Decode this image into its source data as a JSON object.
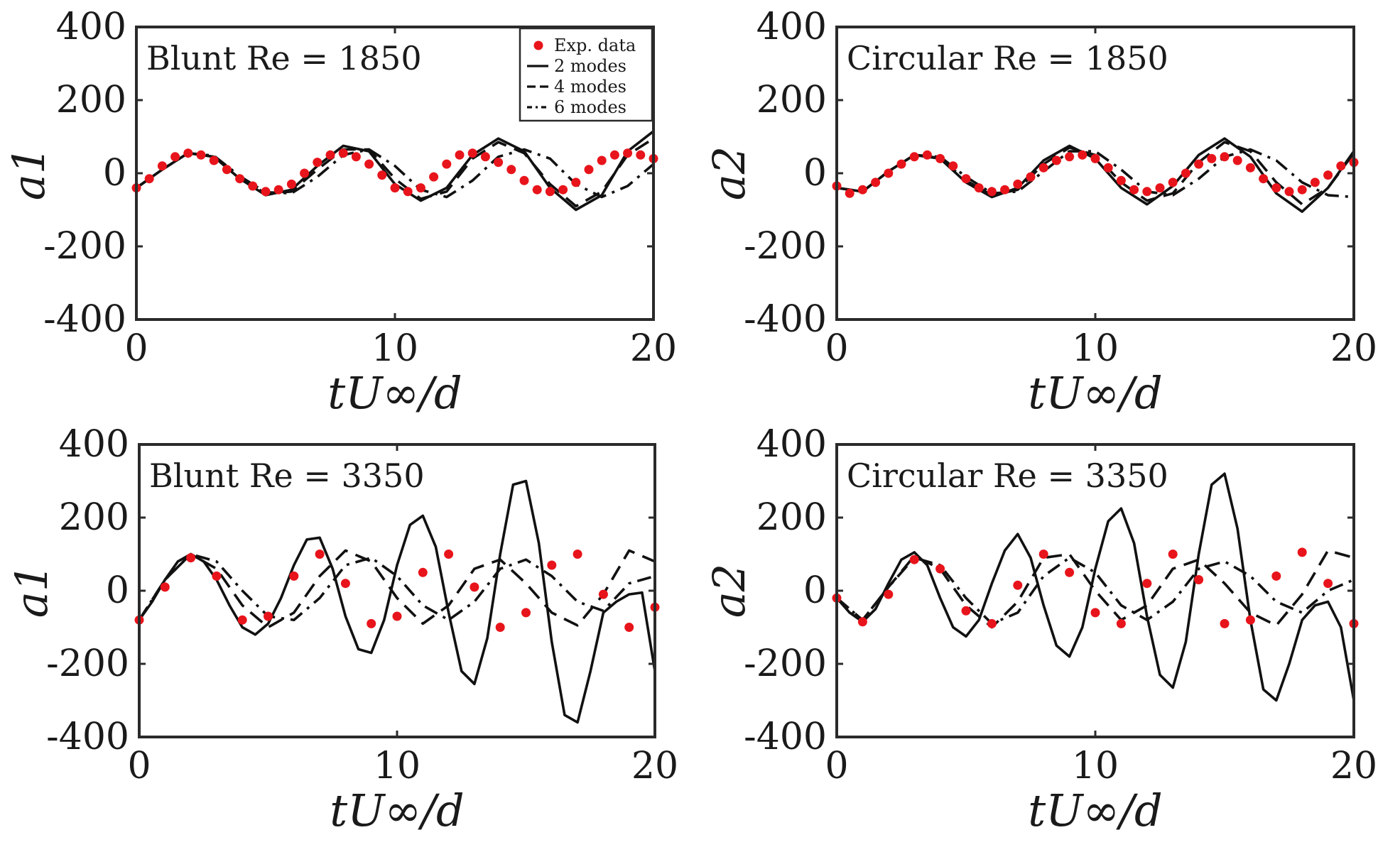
{
  "figure": {
    "legend": {
      "entries": [
        {
          "label": "Exp. data",
          "style": "marker"
        },
        {
          "label": "2 modes",
          "style": "solid"
        },
        {
          "label": "4 modes",
          "style": "dashed"
        },
        {
          "label": "6 modes",
          "style": "dashdot"
        }
      ]
    }
  },
  "chart_data": [
    {
      "type": "line",
      "title": "Blunt Re = 1850",
      "xlabel": "tU∞/d",
      "ylabel": "a1",
      "xlim": [
        0,
        20
      ],
      "ylim": [
        -400,
        400
      ],
      "xticks": [
        "0",
        "10",
        "20"
      ],
      "yticks": [
        "400",
        "200",
        "0",
        "-200",
        "-400"
      ],
      "grid": false,
      "legend": "top-right",
      "series": [
        {
          "name": "2 modes",
          "style": "solid",
          "x": [
            0,
            1,
            2,
            3,
            4,
            5,
            6,
            7,
            8,
            9,
            10,
            11,
            12,
            13,
            14,
            15,
            16,
            17,
            18,
            19,
            20
          ],
          "values": [
            -40,
            10,
            55,
            45,
            -15,
            -60,
            -45,
            20,
            75,
            60,
            -30,
            -75,
            -40,
            50,
            95,
            60,
            -40,
            -100,
            -60,
            60,
            115
          ]
        },
        {
          "name": "4 modes",
          "style": "dashed",
          "x": [
            0,
            1,
            2,
            3,
            4,
            5,
            6,
            7,
            8,
            9,
            10,
            11,
            12,
            13,
            14,
            15,
            16,
            17,
            18,
            19,
            20
          ],
          "values": [
            -40,
            10,
            55,
            45,
            -15,
            -55,
            -50,
            10,
            65,
            65,
            -15,
            -70,
            -50,
            40,
            85,
            55,
            -30,
            -90,
            -50,
            50,
            95
          ]
        },
        {
          "name": "6 modes",
          "style": "dashdot",
          "x": [
            0,
            1,
            2,
            3,
            4,
            5,
            6,
            7,
            8,
            9,
            10,
            11,
            12,
            13,
            14,
            15,
            16,
            17,
            18,
            19,
            20
          ],
          "values": [
            -40,
            10,
            55,
            48,
            -8,
            -52,
            -55,
            -10,
            50,
            65,
            20,
            -45,
            -65,
            -20,
            45,
            65,
            40,
            -30,
            -65,
            -35,
            25
          ]
        },
        {
          "name": "Exp. data",
          "style": "marker",
          "x": [
            0,
            0.5,
            1,
            1.5,
            2,
            2.5,
            3,
            3.5,
            4,
            4.5,
            5,
            5.5,
            6,
            6.5,
            7,
            7.5,
            8,
            8.5,
            9,
            9.5,
            10,
            10.5,
            11,
            11.5,
            12,
            12.5,
            13,
            13.5,
            14,
            14.5,
            15,
            15.5,
            16,
            16.5,
            17,
            17.5,
            18,
            18.5,
            19,
            19.5,
            20
          ],
          "values": [
            -40,
            -15,
            20,
            45,
            55,
            50,
            35,
            10,
            -15,
            -35,
            -50,
            -45,
            -30,
            0,
            30,
            50,
            55,
            45,
            25,
            -5,
            -40,
            -50,
            -40,
            -10,
            25,
            50,
            55,
            45,
            30,
            10,
            -20,
            -45,
            -50,
            -45,
            -25,
            10,
            35,
            50,
            55,
            50,
            40
          ]
        }
      ]
    },
    {
      "type": "line",
      "title": "Circular Re = 1850",
      "xlabel": "tU∞/d",
      "ylabel": "a2",
      "xlim": [
        0,
        20
      ],
      "ylim": [
        -400,
        400
      ],
      "xticks": [
        "0",
        "10",
        "20"
      ],
      "yticks": [
        "400",
        "200",
        "0",
        "-200",
        "-400"
      ],
      "grid": false,
      "series": [
        {
          "name": "2 modes",
          "style": "solid",
          "x": [
            0,
            1,
            2,
            3,
            4,
            5,
            6,
            7,
            8,
            9,
            10,
            11,
            12,
            13,
            14,
            15,
            16,
            17,
            18,
            19,
            20
          ],
          "values": [
            -40,
            -50,
            5,
            50,
            40,
            -25,
            -65,
            -40,
            35,
            75,
            40,
            -40,
            -85,
            -35,
            50,
            95,
            45,
            -55,
            -105,
            -40,
            60
          ]
        },
        {
          "name": "4 modes",
          "style": "dashed",
          "x": [
            0,
            1,
            2,
            3,
            4,
            5,
            6,
            7,
            8,
            9,
            10,
            11,
            12,
            13,
            14,
            15,
            16,
            17,
            18,
            19,
            20
          ],
          "values": [
            -40,
            -50,
            5,
            50,
            42,
            -20,
            -60,
            -45,
            25,
            70,
            50,
            -25,
            -75,
            -55,
            30,
            85,
            60,
            -25,
            -85,
            -40,
            55
          ]
        },
        {
          "name": "6 modes",
          "style": "dashdot",
          "x": [
            0,
            1,
            2,
            3,
            4,
            5,
            6,
            7,
            8,
            9,
            10,
            11,
            12,
            13,
            14,
            15,
            16,
            17,
            18,
            19,
            20
          ],
          "values": [
            -40,
            -50,
            5,
            50,
            45,
            -10,
            -55,
            -50,
            5,
            60,
            60,
            10,
            -50,
            -60,
            -15,
            45,
            65,
            35,
            -25,
            -60,
            -65
          ]
        },
        {
          "name": "Exp. data",
          "style": "marker",
          "x": [
            0,
            0.5,
            1,
            1.5,
            2,
            2.5,
            3,
            3.5,
            4,
            4.5,
            5,
            5.5,
            6,
            6.5,
            7,
            7.5,
            8,
            8.5,
            9,
            9.5,
            10,
            10.5,
            11,
            11.5,
            12,
            12.5,
            13,
            13.5,
            14,
            14.5,
            15,
            15.5,
            16,
            16.5,
            17,
            17.5,
            18,
            18.5,
            19,
            19.5,
            20
          ],
          "values": [
            -35,
            -55,
            -45,
            -25,
            0,
            25,
            45,
            50,
            40,
            20,
            -15,
            -40,
            -50,
            -45,
            -30,
            -10,
            15,
            35,
            45,
            50,
            40,
            15,
            -20,
            -45,
            -50,
            -40,
            -25,
            0,
            25,
            40,
            45,
            35,
            15,
            -15,
            -40,
            -50,
            -45,
            -25,
            -5,
            20,
            30
          ]
        }
      ]
    },
    {
      "type": "line",
      "title": "Blunt Re = 3350",
      "xlabel": "tU∞/d",
      "ylabel": "a1",
      "xlim": [
        0,
        20
      ],
      "ylim": [
        -400,
        400
      ],
      "xticks": [
        "0",
        "10",
        "20"
      ],
      "yticks": [
        "400",
        "200",
        "0",
        "-200",
        "-400"
      ],
      "grid": false,
      "series": [
        {
          "name": "2 modes",
          "style": "solid",
          "x": [
            0,
            0.5,
            1,
            1.5,
            2,
            2.5,
            3,
            3.5,
            4,
            4.5,
            5,
            5.5,
            6,
            6.5,
            7,
            7.5,
            8,
            8.5,
            9,
            9.5,
            10,
            10.5,
            11,
            11.5,
            12,
            12.5,
            13,
            13.5,
            14,
            14.5,
            15,
            15.5,
            16,
            16.5,
            17,
            17.5,
            18,
            18.5,
            19,
            19.5,
            20
          ],
          "values": [
            -80,
            -30,
            30,
            80,
            100,
            80,
            30,
            -40,
            -100,
            -120,
            -90,
            -20,
            70,
            140,
            145,
            60,
            -70,
            -160,
            -170,
            -80,
            70,
            180,
            205,
            120,
            -60,
            -220,
            -255,
            -130,
            100,
            290,
            300,
            130,
            -140,
            -340,
            -360,
            -220,
            -60,
            -30,
            -10,
            -5,
            -220
          ]
        },
        {
          "name": "4 modes",
          "style": "dashed",
          "x": [
            0,
            1,
            2,
            3,
            4,
            5,
            6,
            7,
            8,
            9,
            10,
            11,
            12,
            13,
            14,
            15,
            16,
            17,
            18,
            19,
            20
          ],
          "values": [
            -80,
            30,
            100,
            60,
            -40,
            -100,
            -60,
            40,
            110,
            80,
            -20,
            -90,
            -40,
            60,
            85,
            20,
            -60,
            -95,
            -10,
            110,
            80
          ]
        },
        {
          "name": "6 modes",
          "style": "dashdot",
          "x": [
            0,
            1,
            2,
            3,
            4,
            5,
            6,
            7,
            8,
            9,
            10,
            11,
            12,
            13,
            14,
            15,
            16,
            17,
            18,
            19,
            20
          ],
          "values": [
            -80,
            30,
            100,
            80,
            0,
            -70,
            -80,
            -20,
            70,
            90,
            40,
            -40,
            -80,
            -30,
            60,
            85,
            40,
            -30,
            -55,
            20,
            40
          ]
        },
        {
          "name": "Exp. data",
          "style": "marker",
          "x": [
            0,
            1,
            2,
            3,
            4,
            5,
            6,
            7,
            8,
            9,
            10,
            11,
            12,
            13,
            14,
            15,
            16,
            17,
            18,
            19,
            20
          ],
          "values": [
            -80,
            10,
            90,
            40,
            -80,
            -70,
            40,
            100,
            20,
            -90,
            -70,
            50,
            100,
            10,
            -100,
            -60,
            70,
            100,
            -10,
            -100,
            -45
          ]
        }
      ]
    },
    {
      "type": "line",
      "title": "Circular Re = 3350",
      "xlabel": "tU∞/d",
      "ylabel": "a2",
      "xlim": [
        0,
        20
      ],
      "ylim": [
        -400,
        400
      ],
      "xticks": [
        "0",
        "10",
        "20"
      ],
      "yticks": [
        "400",
        "200",
        "0",
        "-200",
        "-400"
      ],
      "grid": false,
      "series": [
        {
          "name": "2 modes",
          "style": "solid",
          "x": [
            0,
            0.5,
            1,
            1.5,
            2,
            2.5,
            3,
            3.5,
            4,
            4.5,
            5,
            5.5,
            6,
            6.5,
            7,
            7.5,
            8,
            8.5,
            9,
            9.5,
            10,
            10.5,
            11,
            11.5,
            12,
            12.5,
            13,
            13.5,
            14,
            14.5,
            15,
            15.5,
            16,
            16.5,
            17,
            17.5,
            18,
            18.5,
            19,
            19.5,
            20
          ],
          "values": [
            -20,
            -60,
            -85,
            -50,
            20,
            85,
            105,
            70,
            -20,
            -100,
            -125,
            -80,
            20,
            110,
            155,
            90,
            -40,
            -150,
            -180,
            -100,
            60,
            190,
            225,
            130,
            -70,
            -230,
            -265,
            -140,
            100,
            290,
            320,
            170,
            -80,
            -270,
            -300,
            -200,
            -80,
            -40,
            -30,
            -100,
            -300
          ]
        },
        {
          "name": "4 modes",
          "style": "dashed",
          "x": [
            0,
            1,
            2,
            3,
            4,
            5,
            6,
            7,
            8,
            9,
            10,
            11,
            12,
            13,
            14,
            15,
            16,
            17,
            18,
            19,
            20
          ],
          "values": [
            -20,
            -80,
            10,
            95,
            60,
            -40,
            -100,
            -30,
            90,
            100,
            0,
            -80,
            -40,
            60,
            85,
            20,
            -60,
            -95,
            -10,
            110,
            90
          ]
        },
        {
          "name": "6 modes",
          "style": "dashdot",
          "x": [
            0,
            1,
            2,
            3,
            4,
            5,
            6,
            7,
            8,
            9,
            10,
            11,
            12,
            13,
            14,
            15,
            16,
            17,
            18,
            19,
            20
          ],
          "values": [
            -20,
            -80,
            10,
            90,
            70,
            -20,
            -90,
            -60,
            40,
            90,
            50,
            -40,
            -80,
            -30,
            60,
            80,
            40,
            -30,
            -60,
            0,
            30
          ]
        },
        {
          "name": "Exp. data",
          "style": "marker",
          "x": [
            0,
            1,
            2,
            3,
            4,
            5,
            6,
            7,
            8,
            9,
            10,
            11,
            12,
            13,
            14,
            15,
            16,
            17,
            18,
            19,
            20
          ],
          "values": [
            -20,
            -85,
            -10,
            85,
            60,
            -55,
            -90,
            15,
            100,
            50,
            -60,
            -90,
            20,
            100,
            30,
            -90,
            -80,
            40,
            105,
            20,
            -90
          ]
        }
      ]
    }
  ]
}
